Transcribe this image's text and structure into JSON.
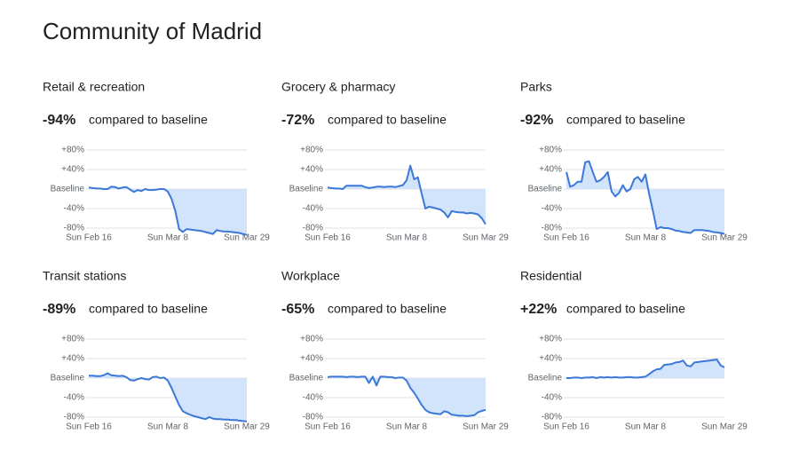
{
  "title": "Community of Madrid",
  "chart_data": [
    {
      "type": "line",
      "title": "Retail & recreation",
      "headline": {
        "value": -94,
        "label": "-94%"
      },
      "headline_text": "compared to baseline",
      "categories": [
        "Sun Feb 16",
        null,
        null,
        null,
        null,
        null,
        null,
        null,
        null,
        null,
        null,
        null,
        null,
        null,
        null,
        null,
        null,
        null,
        null,
        null,
        null,
        "Sun Mar 8",
        null,
        null,
        null,
        null,
        null,
        null,
        null,
        null,
        null,
        null,
        null,
        null,
        null,
        null,
        null,
        null,
        null,
        null,
        null,
        null,
        "Sun Mar 29"
      ],
      "values": [
        3,
        2,
        1,
        1,
        0,
        0,
        5,
        4,
        1,
        3,
        4,
        -1,
        -6,
        -2,
        -4,
        0,
        -2,
        -2,
        -1,
        0,
        0,
        -5,
        -20,
        -45,
        -82,
        -88,
        -82,
        -83,
        -84,
        -85,
        -86,
        -88,
        -90,
        -92,
        -84,
        -86,
        -87,
        -87,
        -88,
        -89,
        -90,
        -92,
        -94
      ],
      "color": "#3c78d8",
      "area_color": "#d2e3fc",
      "ylim": [
        -80,
        80
      ],
      "yticks": [
        {
          "value": 80,
          "label": "+80%"
        },
        {
          "value": 40,
          "label": "+40%"
        },
        {
          "value": 0,
          "label": "Baseline"
        },
        {
          "value": -40,
          "label": "-40%"
        },
        {
          "value": -80,
          "label": "-80%"
        }
      ],
      "grid": true
    },
    {
      "type": "line",
      "title": "Grocery & pharmacy",
      "headline": {
        "value": -72,
        "label": "-72%"
      },
      "headline_text": "compared to baseline",
      "categories": [
        "Sun Feb 16",
        null,
        null,
        null,
        null,
        null,
        null,
        null,
        null,
        null,
        null,
        null,
        null,
        null,
        null,
        null,
        null,
        null,
        null,
        null,
        null,
        "Sun Mar 8",
        null,
        null,
        null,
        null,
        null,
        null,
        null,
        null,
        null,
        null,
        null,
        null,
        null,
        null,
        null,
        null,
        null,
        null,
        null,
        null,
        "Sun Mar 29"
      ],
      "values": [
        3,
        2,
        1,
        1,
        0,
        7,
        7,
        7,
        7,
        7,
        4,
        2,
        3,
        5,
        5,
        4,
        5,
        5,
        4,
        6,
        8,
        18,
        48,
        20,
        24,
        -10,
        -40,
        -36,
        -38,
        -40,
        -42,
        -48,
        -58,
        -45,
        -47,
        -48,
        -48,
        -50,
        -49,
        -50,
        -52,
        -60,
        -72
      ],
      "color": "#3c78d8",
      "area_color": "#d2e3fc",
      "ylim": [
        -80,
        80
      ],
      "yticks": [
        {
          "value": 80,
          "label": "+80%"
        },
        {
          "value": 40,
          "label": "+40%"
        },
        {
          "value": 0,
          "label": "Baseline"
        },
        {
          "value": -40,
          "label": "-40%"
        },
        {
          "value": -80,
          "label": "-80%"
        }
      ],
      "grid": true
    },
    {
      "type": "line",
      "title": "Parks",
      "headline": {
        "value": -92,
        "label": "-92%"
      },
      "headline_text": "compared to baseline",
      "categories": [
        "Sun Feb 16",
        null,
        null,
        null,
        null,
        null,
        null,
        null,
        null,
        null,
        null,
        null,
        null,
        null,
        null,
        null,
        null,
        null,
        null,
        null,
        null,
        "Sun Mar 8",
        null,
        null,
        null,
        null,
        null,
        null,
        null,
        null,
        null,
        null,
        null,
        null,
        null,
        null,
        null,
        null,
        null,
        null,
        null,
        null,
        "Sun Mar 29"
      ],
      "values": [
        35,
        5,
        8,
        15,
        15,
        55,
        57,
        35,
        15,
        18,
        25,
        35,
        -5,
        -15,
        -8,
        8,
        -5,
        0,
        20,
        25,
        15,
        30,
        -10,
        -45,
        -82,
        -78,
        -80,
        -80,
        -82,
        -85,
        -86,
        -88,
        -89,
        -90,
        -84,
        -84,
        -84,
        -85,
        -86,
        -88,
        -89,
        -90,
        -92
      ],
      "color": "#3c78d8",
      "area_color": "#d2e3fc",
      "ylim": [
        -80,
        80
      ],
      "yticks": [
        {
          "value": 80,
          "label": "+80%"
        },
        {
          "value": 40,
          "label": "+40%"
        },
        {
          "value": 0,
          "label": "Baseline"
        },
        {
          "value": -40,
          "label": "-40%"
        },
        {
          "value": -80,
          "label": "-80%"
        }
      ],
      "grid": true
    },
    {
      "type": "line",
      "title": "Transit stations",
      "headline": {
        "value": -89,
        "label": "-89%"
      },
      "headline_text": "compared to baseline",
      "categories": [
        "Sun Feb 16",
        null,
        null,
        null,
        null,
        null,
        null,
        null,
        null,
        null,
        null,
        null,
        null,
        null,
        null,
        null,
        null,
        null,
        null,
        null,
        null,
        "Sun Mar 8",
        null,
        null,
        null,
        null,
        null,
        null,
        null,
        null,
        null,
        null,
        null,
        null,
        null,
        null,
        null,
        null,
        null,
        null,
        null,
        null,
        "Sun Mar 29"
      ],
      "values": [
        5,
        5,
        4,
        4,
        6,
        10,
        6,
        5,
        4,
        5,
        2,
        -4,
        -5,
        -2,
        0,
        -2,
        -3,
        2,
        3,
        0,
        1,
        -5,
        -20,
        -38,
        -55,
        -68,
        -72,
        -75,
        -78,
        -80,
        -82,
        -84,
        -80,
        -83,
        -84,
        -84,
        -85,
        -85,
        -86,
        -86,
        -87,
        -88,
        -89
      ],
      "color": "#3c78d8",
      "area_color": "#d2e3fc",
      "ylim": [
        -80,
        80
      ],
      "yticks": [
        {
          "value": 80,
          "label": "+80%"
        },
        {
          "value": 40,
          "label": "+40%"
        },
        {
          "value": 0,
          "label": "Baseline"
        },
        {
          "value": -40,
          "label": "-40%"
        },
        {
          "value": -80,
          "label": "-80%"
        }
      ],
      "grid": true
    },
    {
      "type": "line",
      "title": "Workplace",
      "headline": {
        "value": -65,
        "label": "-65%"
      },
      "headline_text": "compared to baseline",
      "categories": [
        "Sun Feb 16",
        null,
        null,
        null,
        null,
        null,
        null,
        null,
        null,
        null,
        null,
        null,
        null,
        null,
        null,
        null,
        null,
        null,
        null,
        null,
        null,
        "Sun Mar 8",
        null,
        null,
        null,
        null,
        null,
        null,
        null,
        null,
        null,
        null,
        null,
        null,
        null,
        null,
        null,
        null,
        null,
        null,
        null,
        null,
        "Sun Mar 29"
      ],
      "values": [
        2,
        3,
        3,
        3,
        3,
        2,
        3,
        3,
        2,
        3,
        3,
        -10,
        3,
        -15,
        3,
        3,
        2,
        2,
        0,
        1,
        1,
        -5,
        -20,
        -30,
        -42,
        -55,
        -65,
        -70,
        -72,
        -73,
        -74,
        -68,
        -70,
        -75,
        -76,
        -77,
        -77,
        -78,
        -77,
        -76,
        -70,
        -67,
        -65
      ],
      "color": "#3c78d8",
      "area_color": "#d2e3fc",
      "ylim": [
        -80,
        80
      ],
      "yticks": [
        {
          "value": 80,
          "label": "+80%"
        },
        {
          "value": 40,
          "label": "+40%"
        },
        {
          "value": 0,
          "label": "Baseline"
        },
        {
          "value": -40,
          "label": "-40%"
        },
        {
          "value": -80,
          "label": "-80%"
        }
      ],
      "grid": true
    },
    {
      "type": "line",
      "title": "Residential",
      "headline": {
        "value": 22,
        "label": "+22%"
      },
      "headline_text": "compared to baseline",
      "categories": [
        "Sun Feb 16",
        null,
        null,
        null,
        null,
        null,
        null,
        null,
        null,
        null,
        null,
        null,
        null,
        null,
        null,
        null,
        null,
        null,
        null,
        null,
        null,
        "Sun Mar 8",
        null,
        null,
        null,
        null,
        null,
        null,
        null,
        null,
        null,
        null,
        null,
        null,
        null,
        null,
        null,
        null,
        null,
        null,
        null,
        null,
        "Sun Mar 29"
      ],
      "values": [
        0,
        0,
        1,
        1,
        0,
        1,
        1,
        2,
        0,
        2,
        1,
        2,
        1,
        2,
        1,
        1,
        2,
        2,
        1,
        1,
        2,
        3,
        8,
        14,
        18,
        19,
        27,
        28,
        29,
        32,
        33,
        36,
        26,
        24,
        32,
        33,
        34,
        35,
        36,
        37,
        38,
        26,
        22
      ],
      "color": "#3c78d8",
      "area_color": "#d2e3fc",
      "ylim": [
        -80,
        80
      ],
      "yticks": [
        {
          "value": 80,
          "label": "+80%"
        },
        {
          "value": 40,
          "label": "+40%"
        },
        {
          "value": 0,
          "label": "Baseline"
        },
        {
          "value": -40,
          "label": "-40%"
        },
        {
          "value": -80,
          "label": "-80%"
        }
      ],
      "grid": true
    }
  ]
}
